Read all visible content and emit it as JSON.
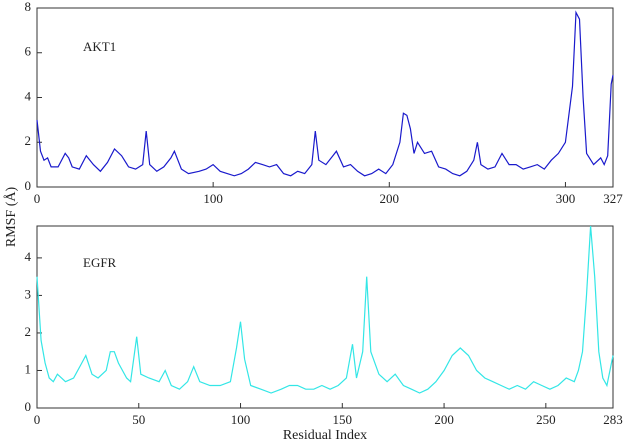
{
  "ylabel": "RMSF (Å)",
  "xlabel": "Residual Index",
  "chart_data": [
    {
      "type": "line",
      "annotation": "AKT1",
      "color": "#1a1acc",
      "xlim": [
        0,
        327
      ],
      "xticks": [
        0,
        100,
        200,
        300,
        327
      ],
      "ylim": [
        0,
        8
      ],
      "yticks": [
        0,
        2,
        4,
        6,
        8
      ],
      "x": [
        0,
        2,
        4,
        6,
        8,
        12,
        16,
        18,
        20,
        24,
        28,
        32,
        36,
        40,
        44,
        48,
        52,
        56,
        60,
        62,
        64,
        68,
        72,
        76,
        78,
        82,
        86,
        92,
        96,
        100,
        104,
        108,
        112,
        116,
        120,
        124,
        128,
        132,
        136,
        140,
        144,
        148,
        152,
        156,
        158,
        160,
        164,
        168,
        170,
        174,
        178,
        182,
        186,
        190,
        194,
        198,
        202,
        206,
        208,
        210,
        212,
        214,
        216,
        220,
        224,
        228,
        232,
        236,
        240,
        244,
        248,
        250,
        252,
        256,
        260,
        264,
        268,
        272,
        276,
        280,
        284,
        288,
        292,
        296,
        300,
        304,
        306,
        308,
        310,
        312,
        316,
        320,
        322,
        324,
        326,
        327
      ],
      "values": [
        3.0,
        1.6,
        1.2,
        1.3,
        0.9,
        0.9,
        1.5,
        1.3,
        0.9,
        0.8,
        1.4,
        1.0,
        0.7,
        1.1,
        1.7,
        1.4,
        0.9,
        0.8,
        1.0,
        2.5,
        1.0,
        0.7,
        0.9,
        1.3,
        1.6,
        0.8,
        0.6,
        0.7,
        0.8,
        1.0,
        0.7,
        0.6,
        0.5,
        0.6,
        0.8,
        1.1,
        1.0,
        0.9,
        1.0,
        0.6,
        0.5,
        0.7,
        0.6,
        1.0,
        2.5,
        1.2,
        1.0,
        1.4,
        1.6,
        0.9,
        1.0,
        0.7,
        0.5,
        0.6,
        0.8,
        0.6,
        1.0,
        2.0,
        3.3,
        3.2,
        2.6,
        1.5,
        2.0,
        1.5,
        1.6,
        0.9,
        0.8,
        0.6,
        0.5,
        0.7,
        1.2,
        2.0,
        1.0,
        0.8,
        0.9,
        1.5,
        1.0,
        1.0,
        0.8,
        0.9,
        1.0,
        0.8,
        1.2,
        1.5,
        2.0,
        4.5,
        7.8,
        7.5,
        4.0,
        1.5,
        1.0,
        1.3,
        1.0,
        1.4,
        4.6,
        5.0
      ]
    },
    {
      "type": "line",
      "annotation": "EGFR",
      "color": "#33e6e6",
      "xlim": [
        0,
        283
      ],
      "xticks": [
        0,
        50,
        100,
        150,
        200,
        250,
        283
      ],
      "ylim": [
        0,
        4.85
      ],
      "yticks": [
        0,
        1,
        2,
        3,
        4
      ],
      "x": [
        0,
        2,
        4,
        6,
        8,
        10,
        14,
        18,
        22,
        24,
        27,
        30,
        34,
        36,
        38,
        40,
        44,
        46,
        49,
        51,
        55,
        60,
        63,
        66,
        70,
        74,
        77,
        80,
        85,
        90,
        95,
        98,
        100,
        102,
        105,
        110,
        115,
        120,
        124,
        128,
        132,
        136,
        140,
        144,
        148,
        152,
        155,
        157,
        160,
        162,
        164,
        168,
        172,
        176,
        180,
        184,
        188,
        192,
        196,
        200,
        204,
        208,
        212,
        216,
        220,
        224,
        228,
        232,
        236,
        240,
        244,
        248,
        252,
        256,
        260,
        264,
        266,
        268,
        270,
        272,
        274,
        276,
        278,
        280,
        283
      ],
      "values": [
        3.5,
        1.8,
        1.2,
        0.8,
        0.7,
        0.9,
        0.7,
        0.8,
        1.2,
        1.4,
        0.9,
        0.8,
        1.0,
        1.5,
        1.5,
        1.2,
        0.8,
        0.7,
        1.9,
        0.9,
        0.8,
        0.7,
        1.0,
        0.6,
        0.5,
        0.7,
        1.1,
        0.7,
        0.6,
        0.6,
        0.7,
        1.6,
        2.3,
        1.3,
        0.6,
        0.5,
        0.4,
        0.5,
        0.6,
        0.6,
        0.5,
        0.5,
        0.6,
        0.5,
        0.6,
        0.8,
        1.7,
        0.8,
        1.5,
        3.5,
        1.5,
        0.9,
        0.7,
        0.9,
        0.6,
        0.5,
        0.4,
        0.5,
        0.7,
        1.0,
        1.4,
        1.6,
        1.4,
        1.0,
        0.8,
        0.7,
        0.6,
        0.5,
        0.6,
        0.5,
        0.7,
        0.6,
        0.5,
        0.6,
        0.8,
        0.7,
        1.0,
        1.5,
        3.0,
        4.85,
        3.5,
        1.5,
        0.8,
        0.6,
        1.4
      ]
    }
  ]
}
